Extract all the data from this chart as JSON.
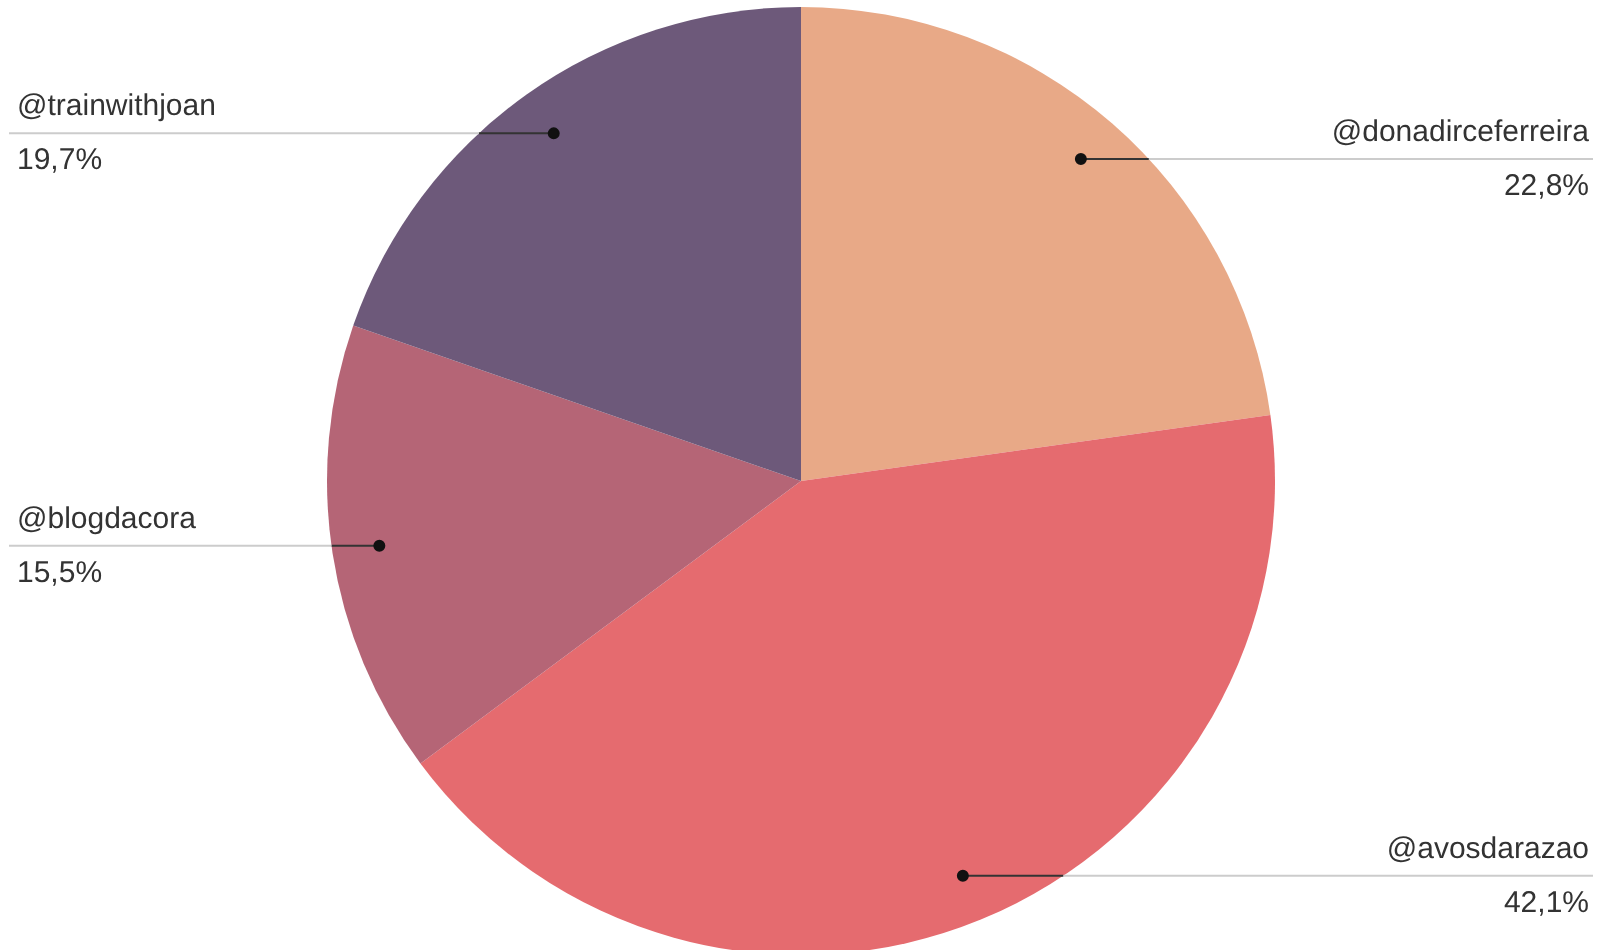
{
  "chart_data": {
    "type": "pie",
    "categories": [
      "@donadirceferreira",
      "@avosdarazao",
      "@blogdacora",
      "@trainwithjoan"
    ],
    "values": [
      22.8,
      42.1,
      15.5,
      19.7
    ],
    "colors": [
      "#e8a987",
      "#e56b6f",
      "#b56576",
      "#6d597a"
    ],
    "value_labels": [
      "22,8%",
      "42,1%",
      "15,5%",
      "19,7%"
    ]
  }
}
